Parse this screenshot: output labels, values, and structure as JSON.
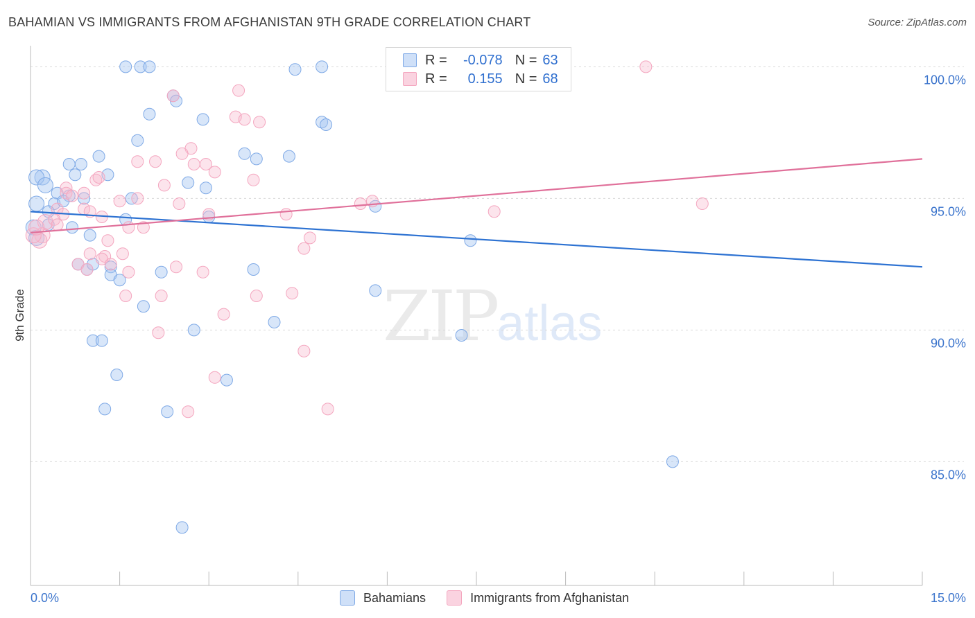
{
  "title": "BAHAMIAN VS IMMIGRANTS FROM AFGHANISTAN 9TH GRADE CORRELATION CHART",
  "source": "Source: ZipAtlas.com",
  "watermark": {
    "zip": "ZIP",
    "atlas": "atlas"
  },
  "legend": {
    "rows": [
      {
        "r_label": "R =",
        "r_value": "-0.078",
        "n_label": "N =",
        "n_value": "63",
        "color": "#a9c8f2"
      },
      {
        "r_label": "R =",
        "r_value": "0.155",
        "n_label": "N =",
        "n_value": "68",
        "color": "#f7bcd0"
      }
    ]
  },
  "bottom_legend": {
    "series1": "Bahamians",
    "series2": "Immigrants from Afghanistan"
  },
  "chart_data": {
    "type": "scatter",
    "title": "BAHAMIAN VS IMMIGRANTS FROM AFGHANISTAN 9TH GRADE CORRELATION CHART",
    "xlabel": "",
    "ylabel": "9th Grade",
    "xlim": [
      0,
      15
    ],
    "ylim": [
      80.3,
      100.8
    ],
    "x_tick_labels": [
      "0.0%",
      "15.0%"
    ],
    "y_ticks": [
      85,
      90,
      95,
      100
    ],
    "y_tick_labels": [
      "85.0%",
      "90.0%",
      "95.0%",
      "100.0%"
    ],
    "grid": true,
    "series": [
      {
        "name": "Bahamians",
        "color": "#7ea9e6",
        "line_color": "#2d72d2",
        "trend": {
          "x": [
            0,
            15
          ],
          "y": [
            94.5,
            92.4
          ]
        },
        "points": [
          [
            1.6,
            100
          ],
          [
            1.85,
            100
          ],
          [
            2.0,
            100
          ],
          [
            4.45,
            99.9
          ],
          [
            4.9,
            100
          ],
          [
            2.4,
            98.9
          ],
          [
            2.45,
            98.7
          ],
          [
            2.0,
            98.2
          ],
          [
            2.9,
            98.0
          ],
          [
            4.9,
            97.9
          ],
          [
            4.97,
            97.8
          ],
          [
            1.8,
            97.2
          ],
          [
            1.15,
            96.6
          ],
          [
            0.85,
            96.3
          ],
          [
            0.65,
            96.3
          ],
          [
            3.6,
            96.7
          ],
          [
            3.8,
            96.5
          ],
          [
            4.35,
            96.6
          ],
          [
            0.2,
            95.8
          ],
          [
            0.1,
            95.8
          ],
          [
            0.75,
            95.9
          ],
          [
            1.3,
            95.9
          ],
          [
            0.25,
            95.5
          ],
          [
            2.65,
            95.6
          ],
          [
            2.95,
            95.4
          ],
          [
            0.45,
            95.2
          ],
          [
            0.65,
            95.1
          ],
          [
            0.9,
            95.0
          ],
          [
            1.7,
            95.0
          ],
          [
            0.1,
            94.8
          ],
          [
            0.4,
            94.8
          ],
          [
            0.55,
            94.9
          ],
          [
            1.6,
            94.2
          ],
          [
            3.0,
            94.3
          ],
          [
            5.8,
            94.7
          ],
          [
            0.3,
            94.0
          ],
          [
            0.7,
            93.9
          ],
          [
            1.0,
            93.6
          ],
          [
            7.4,
            93.4
          ],
          [
            0.05,
            93.9
          ],
          [
            0.1,
            93.5
          ],
          [
            0.8,
            92.5
          ],
          [
            0.95,
            92.3
          ],
          [
            1.35,
            92.4
          ],
          [
            1.35,
            92.1
          ],
          [
            1.5,
            91.9
          ],
          [
            2.2,
            92.2
          ],
          [
            3.75,
            92.3
          ],
          [
            5.8,
            91.5
          ],
          [
            1.9,
            90.9
          ],
          [
            4.1,
            90.3
          ],
          [
            2.75,
            90.0
          ],
          [
            1.05,
            89.6
          ],
          [
            1.2,
            89.6
          ],
          [
            7.25,
            89.8
          ],
          [
            1.45,
            88.3
          ],
          [
            3.3,
            88.1
          ],
          [
            1.25,
            87.0
          ],
          [
            2.3,
            86.9
          ],
          [
            10.8,
            85.0
          ],
          [
            2.55,
            82.5
          ],
          [
            0.3,
            94.5
          ],
          [
            1.05,
            92.5
          ]
        ]
      },
      {
        "name": "Immigrants from Afghanistan",
        "color": "#f4a6bf",
        "line_color": "#e0709a",
        "trend": {
          "x": [
            0,
            15
          ],
          "y": [
            93.7,
            96.5
          ]
        },
        "points": [
          [
            10.35,
            100
          ],
          [
            7.4,
            100
          ],
          [
            2.4,
            98.9
          ],
          [
            3.5,
            99.1
          ],
          [
            3.45,
            98.1
          ],
          [
            3.6,
            98.0
          ],
          [
            3.85,
            97.9
          ],
          [
            2.7,
            96.9
          ],
          [
            2.55,
            96.7
          ],
          [
            1.8,
            96.4
          ],
          [
            2.1,
            96.4
          ],
          [
            2.75,
            96.3
          ],
          [
            2.95,
            96.3
          ],
          [
            3.1,
            96.0
          ],
          [
            1.1,
            95.7
          ],
          [
            1.15,
            95.8
          ],
          [
            2.25,
            95.5
          ],
          [
            3.75,
            95.7
          ],
          [
            0.6,
            95.4
          ],
          [
            0.6,
            95.2
          ],
          [
            0.7,
            95.1
          ],
          [
            0.9,
            95.2
          ],
          [
            1.5,
            94.9
          ],
          [
            1.8,
            95.0
          ],
          [
            2.5,
            94.8
          ],
          [
            5.55,
            94.8
          ],
          [
            5.75,
            94.9
          ],
          [
            11.3,
            94.8
          ],
          [
            0.45,
            94.6
          ],
          [
            0.55,
            94.4
          ],
          [
            0.9,
            94.6
          ],
          [
            1.0,
            94.5
          ],
          [
            3.0,
            94.4
          ],
          [
            4.3,
            94.4
          ],
          [
            7.8,
            94.5
          ],
          [
            0.25,
            94.1
          ],
          [
            0.4,
            94.2
          ],
          [
            0.45,
            94.0
          ],
          [
            1.2,
            94.3
          ],
          [
            1.65,
            93.9
          ],
          [
            1.9,
            93.9
          ],
          [
            0.2,
            93.6
          ],
          [
            0.15,
            93.4
          ],
          [
            1.3,
            93.4
          ],
          [
            4.7,
            93.5
          ],
          [
            4.6,
            93.1
          ],
          [
            1.0,
            92.9
          ],
          [
            1.25,
            92.8
          ],
          [
            1.55,
            92.9
          ],
          [
            1.2,
            92.7
          ],
          [
            1.35,
            92.5
          ],
          [
            0.8,
            92.5
          ],
          [
            0.95,
            92.3
          ],
          [
            2.45,
            92.4
          ],
          [
            1.65,
            92.2
          ],
          [
            2.9,
            92.2
          ],
          [
            1.6,
            91.3
          ],
          [
            2.2,
            91.3
          ],
          [
            3.8,
            91.3
          ],
          [
            4.4,
            91.4
          ],
          [
            3.25,
            90.6
          ],
          [
            2.15,
            89.9
          ],
          [
            4.6,
            89.2
          ],
          [
            3.1,
            88.2
          ],
          [
            5.0,
            87.0
          ],
          [
            2.65,
            86.9
          ],
          [
            0.05,
            93.6
          ],
          [
            0.1,
            93.9
          ]
        ]
      }
    ]
  }
}
